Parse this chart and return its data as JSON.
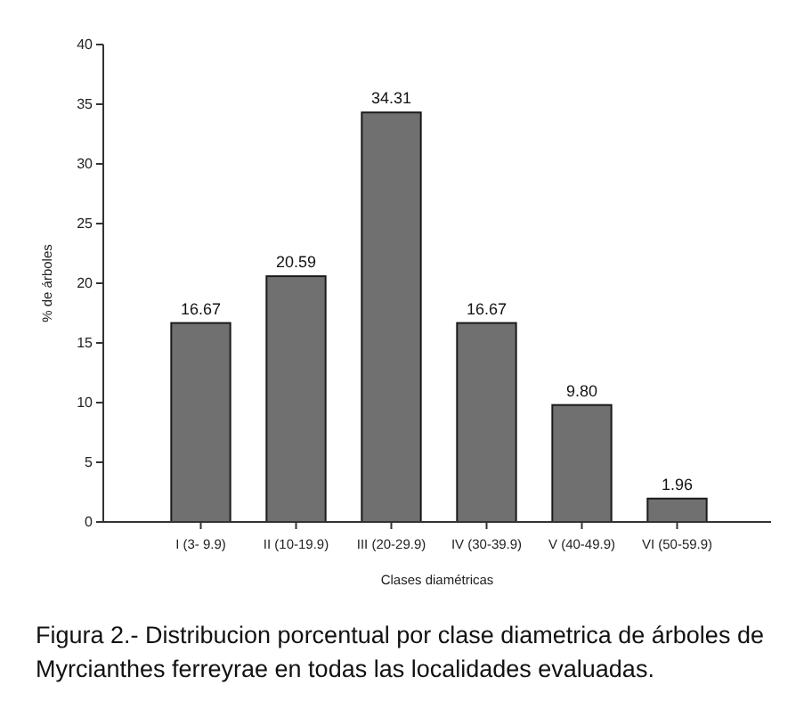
{
  "chart_data": {
    "type": "bar",
    "categories": [
      "I (3- 9.9)",
      "II (10-19.9)",
      "III (20-29.9)",
      "IV (30-39.9)",
      "V (40-49.9)",
      "VI (50-59.9)"
    ],
    "values": [
      16.67,
      20.59,
      34.31,
      16.67,
      9.8,
      1.96
    ],
    "value_labels": [
      "16.67",
      "20.59",
      "34.31",
      "16.67",
      "9.80",
      "1.96"
    ],
    "color": "#707070",
    "xlabel": "Clases diamétricas",
    "ylabel": "% de árboles",
    "ylim": [
      0,
      40
    ],
    "yticks": [
      0,
      5,
      10,
      15,
      20,
      25,
      30,
      35,
      40
    ],
    "annotations": [
      "Figura 2.- Distribucion porcentual por clase diametrica de árboles de Myrcianthes ferreyrae en todas las localidades evaluadas."
    ]
  }
}
